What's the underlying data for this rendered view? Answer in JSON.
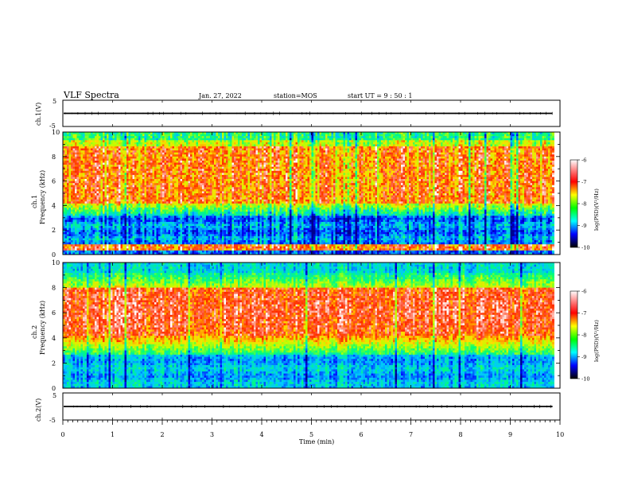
{
  "header": {
    "title": "VLF Spectra",
    "date": "Jan. 27, 2022",
    "station": "station=MOS",
    "start": "start  UT  =   9  : 50 : 1"
  },
  "chart_data": [
    {
      "type": "line",
      "ylabel": "ch.1(V)",
      "ylim": [
        -5,
        5
      ],
      "yticks": [
        "5",
        "-5"
      ],
      "baseline_value": 0
    },
    {
      "type": "heatmap",
      "ylabel_line1": "ch.1",
      "ylabel_line2": "Frequency (kHz)",
      "ylim": [
        0,
        10
      ],
      "yticks": [
        "0",
        "2",
        "4",
        "6",
        "8",
        "10"
      ],
      "colorbar": {
        "label": "log(PSD)(V²/Hz)",
        "range": [
          -10,
          -6
        ],
        "ticks": [
          "-6",
          "-7",
          "-8",
          "-9",
          "-10"
        ]
      }
    },
    {
      "type": "heatmap",
      "ylabel_line1": "ch.2",
      "ylabel_line2": "Frequency (kHz)",
      "ylim": [
        0,
        10
      ],
      "yticks": [
        "0",
        "2",
        "4",
        "6",
        "8",
        "10"
      ],
      "colorbar": {
        "label": "log(PSD)(V²/Hz)",
        "range": [
          -10,
          -6
        ],
        "ticks": [
          "-6",
          "-7",
          "-8",
          "-9",
          "-10"
        ]
      }
    },
    {
      "type": "line",
      "ylabel": "ch.2(V)",
      "ylim": [
        -5,
        5
      ],
      "yticks": [
        "5",
        "-5"
      ],
      "baseline_value": 0
    }
  ],
  "xaxis": {
    "label": "Time (min)",
    "range": [
      0,
      10
    ],
    "ticks": [
      "0",
      "1",
      "2",
      "3",
      "4",
      "5",
      "6",
      "7",
      "8",
      "9",
      "10"
    ],
    "data_end": 9.85
  }
}
